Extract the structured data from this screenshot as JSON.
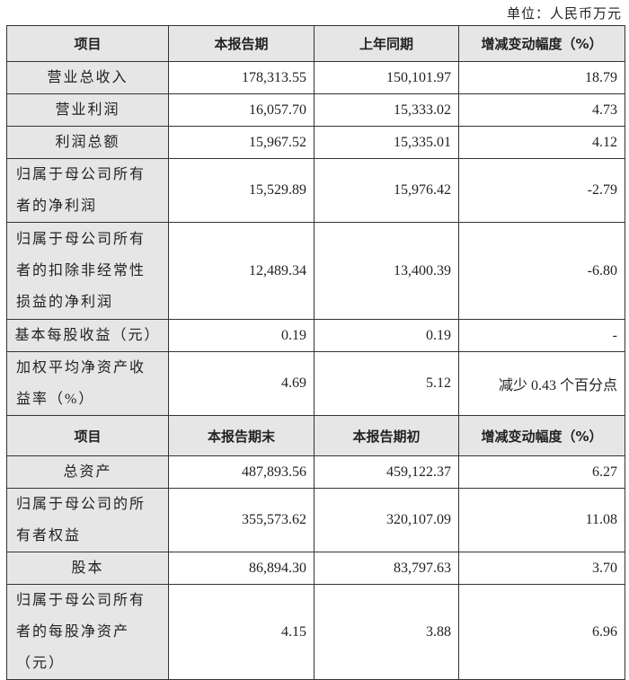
{
  "unit_label": "单位：人民币万元",
  "table1": {
    "headers": [
      "项目",
      "本报告期",
      "上年同期",
      "增减变动幅度（%）"
    ],
    "rows": [
      {
        "item": "营业总收入",
        "current": "178,313.55",
        "prior": "150,101.97",
        "change": "18.79"
      },
      {
        "item": "营业利润",
        "current": "16,057.70",
        "prior": "15,333.02",
        "change": "4.73"
      },
      {
        "item": "利润总额",
        "current": "15,967.52",
        "prior": "15,335.01",
        "change": "4.12"
      },
      {
        "item": "归属于母公司所有者的净利润",
        "current": "15,529.89",
        "prior": "15,976.42",
        "change": "-2.79"
      },
      {
        "item": "归属于母公司所有者的扣除非经常性损益的净利润",
        "current": "12,489.34",
        "prior": "13,400.39",
        "change": "-6.80"
      },
      {
        "item": "基本每股收益（元）",
        "current": "0.19",
        "prior": "0.19",
        "change": "-"
      },
      {
        "item": "加权平均净资产收益率（%）",
        "current": "4.69",
        "prior": "5.12",
        "change": "减少 0.43 个百分点"
      }
    ]
  },
  "table2": {
    "headers": [
      "项目",
      "本报告期末",
      "本报告期初",
      "增减变动幅度（%）"
    ],
    "rows": [
      {
        "item": "总资产",
        "current": "487,893.56",
        "prior": "459,122.37",
        "change": "6.27"
      },
      {
        "item": "归属于母公司的所有者权益",
        "current": "355,573.62",
        "prior": "320,107.09",
        "change": "11.08"
      },
      {
        "item": "股本",
        "current": "86,894.30",
        "prior": "83,797.63",
        "change": "3.70"
      },
      {
        "item": "归属于母公司所有者的每股净资产（元）",
        "current": "4.15",
        "prior": "3.88",
        "change": "6.96"
      }
    ]
  }
}
